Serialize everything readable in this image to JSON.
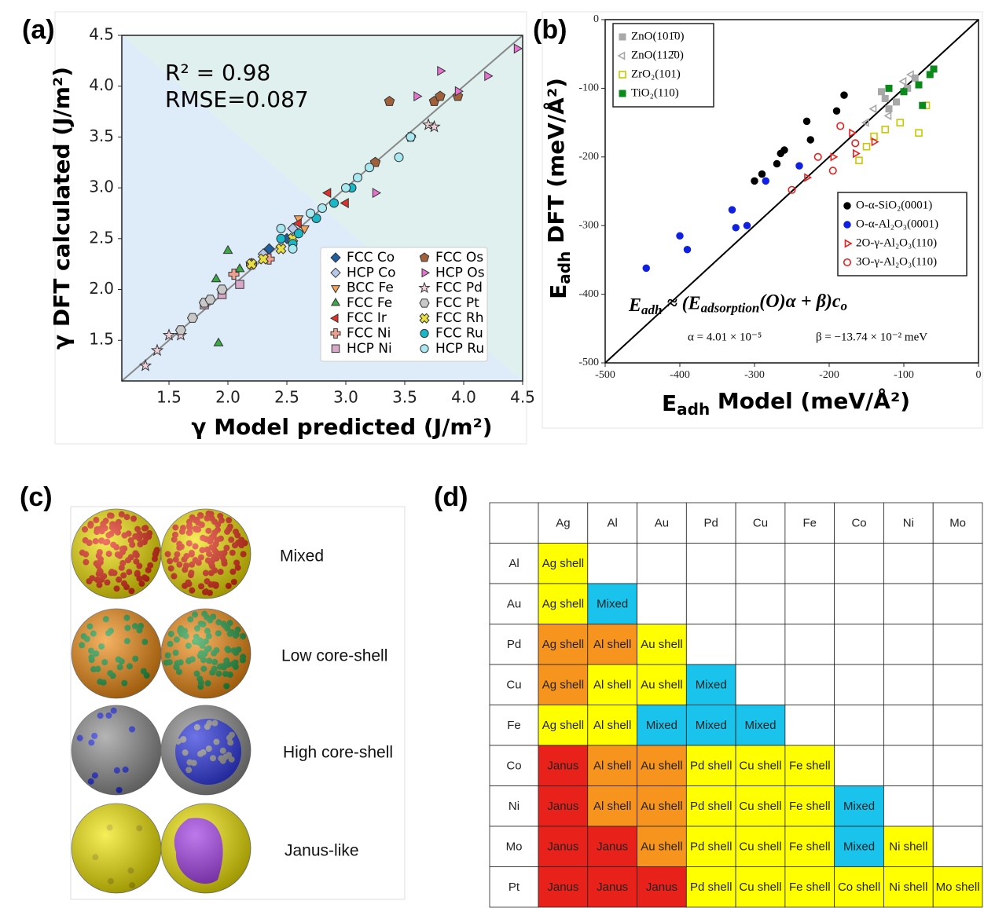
{
  "chart_data": [
    {
      "type": "scatter",
      "panel_label": "(a)",
      "xlabel": "γ Model predicted (J/m²)",
      "ylabel": "γ DFT calculated (J/m²)",
      "annotations": [
        "R² = 0.98",
        "RMSE=0.087"
      ],
      "xlim": [
        1.1,
        4.5
      ],
      "ylim": [
        1.1,
        4.5
      ],
      "xticks": [
        1.5,
        {
          "value": 2,
          "label": "2.0"
        },
        2.5,
        {
          "value": 3,
          "label": "3.0"
        },
        3.5,
        {
          "value": 4,
          "label": "4.0"
        },
        4.5
      ],
      "yticks": [
        1.5,
        {
          "value": 2,
          "label": "2.0"
        },
        2.5,
        {
          "value": 3,
          "label": "3.0"
        },
        3.5,
        {
          "value": 4,
          "label": "4.0"
        },
        4.5
      ],
      "legend": "lower right",
      "series": [
        {
          "name": "FCC Co",
          "color": "#1f5f9f",
          "marker": "diamond",
          "filled": true,
          "x": [
            2.35,
            2.5
          ],
          "values": [
            2.4,
            2.5
          ]
        },
        {
          "name": "HCP Co",
          "color": "#b8c8e8",
          "marker": "diamond",
          "filled": true,
          "x": [
            2.3,
            2.55
          ],
          "values": [
            2.35,
            2.6
          ]
        },
        {
          "name": "BCC Fe",
          "color": "#f4a259",
          "marker": "triangle-down",
          "filled": true,
          "x": [
            2.6,
            2.65
          ],
          "values": [
            2.7,
            2.6
          ]
        },
        {
          "name": "FCC Fe",
          "color": "#3aa845",
          "marker": "triangle-up",
          "filled": true,
          "x": [
            1.9,
            1.92,
            2.0,
            2.1
          ],
          "values": [
            2.1,
            1.47,
            2.38,
            2.2
          ]
        },
        {
          "name": "FCC Ir",
          "color": "#e0302a",
          "marker": "triangle-left",
          "filled": true,
          "x": [
            2.6,
            2.85,
            3.0
          ],
          "values": [
            2.65,
            2.95,
            2.85
          ]
        },
        {
          "name": "FCC Ni",
          "color": "#f0a090",
          "marker": "plus",
          "filled": true,
          "x": [
            2.05,
            2.2,
            2.35
          ],
          "values": [
            2.15,
            2.25,
            2.3
          ]
        },
        {
          "name": "HCP Ni",
          "color": "#d8a8c8",
          "marker": "square",
          "filled": true,
          "x": [
            1.8,
            1.95,
            2.1
          ],
          "values": [
            1.85,
            1.95,
            2.05
          ]
        },
        {
          "name": "FCC Os",
          "color": "#a0603a",
          "marker": "pentagon",
          "filled": true,
          "x": [
            3.25,
            3.37,
            3.55,
            3.75,
            3.8,
            3.95
          ],
          "values": [
            3.25,
            3.85,
            3.5,
            3.85,
            3.9,
            3.9
          ]
        },
        {
          "name": "HCP Os",
          "color": "#e870d0",
          "marker": "triangle-right",
          "filled": true,
          "x": [
            3.25,
            3.55,
            3.6,
            3.8,
            3.95,
            4.2,
            4.45
          ],
          "values": [
            2.95,
            3.5,
            3.9,
            4.15,
            3.95,
            4.1,
            4.37
          ]
        },
        {
          "name": "FCC Pd",
          "color": "#f0d0d8",
          "marker": "star",
          "filled": true,
          "x": [
            1.3,
            1.4,
            1.5,
            1.6,
            2.2,
            3.7,
            3.75
          ],
          "values": [
            1.25,
            1.4,
            1.55,
            1.55,
            2.25,
            3.62,
            3.6
          ]
        },
        {
          "name": "FCC Pt",
          "color": "#c8c8c8",
          "marker": "hexagon",
          "filled": true,
          "x": [
            1.6,
            1.7,
            1.8,
            1.85,
            1.95
          ],
          "values": [
            1.6,
            1.72,
            1.87,
            1.9,
            2.0
          ]
        },
        {
          "name": "FCC Rh",
          "color": "#e8e040",
          "marker": "x",
          "filled": true,
          "x": [
            2.2,
            2.3,
            2.45,
            2.55
          ],
          "values": [
            2.25,
            2.3,
            2.4,
            2.5
          ]
        },
        {
          "name": "FCC Ru",
          "color": "#18b8c8",
          "marker": "circle",
          "filled": true,
          "x": [
            2.45,
            2.55,
            2.6,
            2.75,
            2.9,
            3.05
          ],
          "values": [
            2.5,
            2.45,
            2.55,
            2.7,
            2.85,
            3.0
          ]
        },
        {
          "name": "HCP Ru",
          "color": "#a8e8f0",
          "marker": "circle",
          "filled": true,
          "x": [
            2.45,
            2.55,
            2.7,
            2.8,
            3.0,
            3.1,
            3.2,
            3.45,
            3.55
          ],
          "values": [
            2.6,
            2.4,
            2.75,
            2.8,
            3.0,
            3.1,
            3.2,
            3.3,
            3.5
          ]
        }
      ]
    },
    {
      "type": "scatter",
      "panel_label": "(b)",
      "xlabel": [
        "E",
        "adh",
        " Model (meV/Å²)"
      ],
      "ylabel": [
        "E",
        "adh",
        " DFT (meV/Å²)"
      ],
      "equation": [
        "E",
        "adh",
        " ≈ (E",
        "adsorption",
        "(O)α + β)c",
        "o"
      ],
      "parameters": [
        "α = 4.01 × 10⁻⁵",
        "β = −13.74 × 10⁻² meV"
      ],
      "xlim": [
        -500,
        0
      ],
      "ylim": [
        -500,
        0
      ],
      "xticks": [
        -500,
        -400,
        -300,
        -200,
        -100,
        0
      ],
      "yticks": [
        -500,
        -400,
        -300,
        -200,
        -100,
        0
      ],
      "series": [
        {
          "name": "ZnO(101̄0)",
          "color": "#a8a8a8",
          "marker": "square",
          "filled": true,
          "legend": "upper left",
          "x": [
            -130,
            -125,
            -120,
            -110,
            -95,
            -85
          ],
          "values": [
            -105,
            -115,
            -130,
            -120,
            -100,
            -85
          ]
        },
        {
          "name": "ZnO(112̄0)",
          "color": "#a8a8a8",
          "marker": "triangle-left",
          "filled": false,
          "legend": "upper left",
          "x": [
            -150,
            -140,
            -120,
            -100,
            -90
          ],
          "values": [
            -150,
            -130,
            -140,
            -90,
            -80
          ]
        },
        {
          "name": "ZrO₂(101)",
          "color": "#c8c800",
          "marker": "square",
          "filled": false,
          "legend": "upper left",
          "x": [
            -160,
            -150,
            -140,
            -125,
            -105,
            -80,
            -70
          ],
          "values": [
            -205,
            -185,
            -170,
            -160,
            -150,
            -165,
            -125
          ]
        },
        {
          "name": "TiO₂(110)",
          "color": "#0a8a1a",
          "marker": "square",
          "filled": true,
          "legend": "upper left",
          "x": [
            -120,
            -100,
            -80,
            -75,
            -65,
            -60
          ],
          "values": [
            -100,
            -105,
            -95,
            -125,
            -80,
            -72
          ]
        },
        {
          "name": "O-α-SiO₂(0001)",
          "color": "#000000",
          "marker": "circle",
          "filled": true,
          "legend": "lower right",
          "x": [
            -300,
            -290,
            -270,
            -265,
            -260,
            -230,
            -225,
            -190,
            -180
          ],
          "values": [
            -235,
            -225,
            -210,
            -195,
            -190,
            -148,
            -175,
            -133,
            -110
          ]
        },
        {
          "name": "O-α-Al₂O₃(0001)",
          "color": "#1020e0",
          "marker": "circle",
          "filled": true,
          "legend": "lower right",
          "x": [
            -445,
            -400,
            -390,
            -330,
            -325,
            -310,
            -285,
            -240
          ],
          "values": [
            -362,
            -315,
            -335,
            -277,
            -303,
            -300,
            -235,
            -213
          ]
        },
        {
          "name": "2O-γ-Al₂O₃(110)",
          "color": "#e82020",
          "marker": "triangle-right",
          "filled": false,
          "legend": "lower right",
          "x": [
            -230,
            -195,
            -170,
            -165,
            -140
          ],
          "values": [
            -230,
            -200,
            -165,
            -195,
            -178
          ]
        },
        {
          "name": "3O-γ-Al₂O₃(110)",
          "color": "#e82020",
          "marker": "circle",
          "filled": false,
          "legend": "lower right",
          "x": [
            -250,
            -215,
            -195,
            -185,
            -165
          ],
          "values": [
            -248,
            -200,
            -220,
            -155,
            -180
          ]
        }
      ]
    }
  ],
  "panel_c": {
    "label": "(c)",
    "rows": [
      "Mixed",
      "Low core-shell",
      "High core-shell",
      "Janus-like"
    ]
  },
  "panel_d": {
    "label": "(d)",
    "columns": [
      "Ag",
      "Al",
      "Au",
      "Pd",
      "Cu",
      "Fe",
      "Co",
      "Ni",
      "Mo"
    ],
    "rows": [
      {
        "label": "Al",
        "cells": [
          {
            "text": "Ag shell",
            "color": "#ffff00"
          }
        ]
      },
      {
        "label": "Au",
        "cells": [
          {
            "text": "Ag shell",
            "color": "#ffff00"
          },
          {
            "text": "Mixed",
            "color": "#19c3ec"
          }
        ]
      },
      {
        "label": "Pd",
        "cells": [
          {
            "text": "Ag shell",
            "color": "#f7941d"
          },
          {
            "text": "Al shell",
            "color": "#f7941d"
          },
          {
            "text": "Au shell",
            "color": "#ffff00"
          }
        ]
      },
      {
        "label": "Cu",
        "cells": [
          {
            "text": "Ag shell",
            "color": "#f7941d"
          },
          {
            "text": "Al shell",
            "color": "#ffff00"
          },
          {
            "text": "Au shell",
            "color": "#ffff00"
          },
          {
            "text": "Mixed",
            "color": "#19c3ec"
          }
        ]
      },
      {
        "label": "Fe",
        "cells": [
          {
            "text": "Ag shell",
            "color": "#ffff00"
          },
          {
            "text": "Al shell",
            "color": "#ffff00"
          },
          {
            "text": "Mixed",
            "color": "#19c3ec"
          },
          {
            "text": "Mixed",
            "color": "#19c3ec"
          },
          {
            "text": "Mixed",
            "color": "#19c3ec"
          }
        ]
      },
      {
        "label": "Co",
        "cells": [
          {
            "text": "Janus",
            "color": "#e8221b"
          },
          {
            "text": "Al shell",
            "color": "#f7941d"
          },
          {
            "text": "Au shell",
            "color": "#f7941d"
          },
          {
            "text": "Pd shell",
            "color": "#ffff00"
          },
          {
            "text": "Cu shell",
            "color": "#ffff00"
          },
          {
            "text": "Fe shell",
            "color": "#ffff00"
          }
        ]
      },
      {
        "label": "Ni",
        "cells": [
          {
            "text": "Janus",
            "color": "#e8221b"
          },
          {
            "text": "Al shell",
            "color": "#f7941d"
          },
          {
            "text": "Au shell",
            "color": "#f7941d"
          },
          {
            "text": "Pd shell",
            "color": "#ffff00"
          },
          {
            "text": "Cu shell",
            "color": "#ffff00"
          },
          {
            "text": "Fe shell",
            "color": "#ffff00"
          },
          {
            "text": "Mixed",
            "color": "#19c3ec"
          }
        ]
      },
      {
        "label": "Mo",
        "cells": [
          {
            "text": "Janus",
            "color": "#e8221b"
          },
          {
            "text": "Janus",
            "color": "#e8221b"
          },
          {
            "text": "Au shell",
            "color": "#f7941d"
          },
          {
            "text": "Pd shell",
            "color": "#ffff00"
          },
          {
            "text": "Cu shell",
            "color": "#ffff00"
          },
          {
            "text": "Fe shell",
            "color": "#ffff00"
          },
          {
            "text": "Mixed",
            "color": "#19c3ec"
          },
          {
            "text": "Ni shell",
            "color": "#ffff00"
          }
        ]
      },
      {
        "label": "Pt",
        "cells": [
          {
            "text": "Janus",
            "color": "#e8221b"
          },
          {
            "text": "Janus",
            "color": "#e8221b"
          },
          {
            "text": "Janus",
            "color": "#e8221b"
          },
          {
            "text": "Pd shell",
            "color": "#ffff00"
          },
          {
            "text": "Cu shell",
            "color": "#ffff00"
          },
          {
            "text": "Fe shell",
            "color": "#ffff00"
          },
          {
            "text": "Co shell",
            "color": "#ffff00"
          },
          {
            "text": "Ni shell",
            "color": "#ffff00"
          },
          {
            "text": "Mo shell",
            "color": "#ffff00"
          }
        ]
      }
    ]
  }
}
